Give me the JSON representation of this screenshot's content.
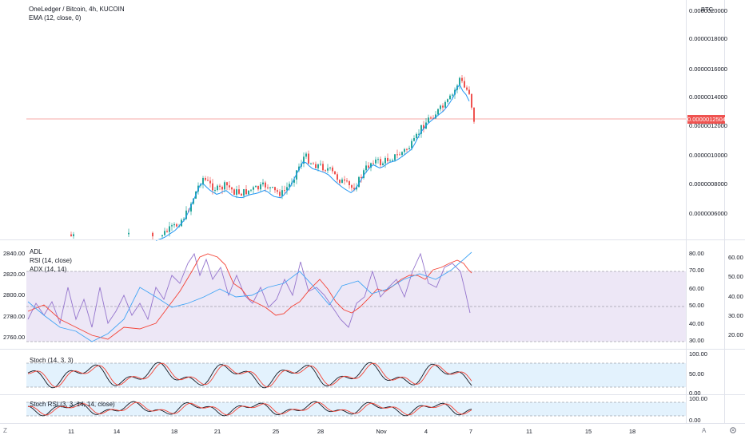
{
  "header": {
    "symbol_line": "OneLedger / Bitcoin, 4h, KUCOIN",
    "ema_label": "EMA (12, close, 0)",
    "currency_label": "BTC"
  },
  "price_axis": {
    "labels": [
      "0.0000020000",
      "0.0000018000",
      "0.0000016000",
      "0.0000014000",
      "0.0000012000",
      "0.0000010000",
      "0.0000008000",
      "0.0000006000"
    ],
    "last_price": "0.0000012504"
  },
  "indicators": {
    "adl_label": "ADL",
    "rsi_label": "RSI (14, close)",
    "adx_label": "ADX (14, 14)",
    "adl_axis": [
      "2840.00",
      "2820.00",
      "2800.00",
      "2780.00",
      "2760.00"
    ],
    "rsi_axis": [
      "80.00",
      "70.00",
      "60.00",
      "50.00",
      "40.00",
      "30.00"
    ],
    "adx_axis": [
      "60.00",
      "50.00",
      "40.00",
      "30.00",
      "20.00"
    ],
    "stoch_label": "Stoch (14, 3, 3)",
    "stoch_axis": [
      "100.00",
      "50.00",
      "0.00"
    ],
    "stochrsi_label": "Stoch RSI (3, 3, 14, 14, close)",
    "stochrsi_axis": [
      "100.00",
      "0.00"
    ]
  },
  "time_axis": {
    "labels": [
      "11",
      "14",
      "18",
      "21",
      "25",
      "28",
      "Nov",
      "4",
      "7",
      "11",
      "15",
      "18"
    ]
  },
  "footer": {
    "left_icon": "Z",
    "right_icon": "A"
  },
  "colors": {
    "up": "#26a69a",
    "down": "#ef5350",
    "ema": "#2196f3",
    "adl": "#9575cd",
    "rsi": "#f44336",
    "adx": "#42a5f5",
    "stoch_k": "#131722",
    "stoch_d": "#f44336",
    "rsi_band": "#ede7f6",
    "stoch_band": "#e3f2fd"
  }
}
